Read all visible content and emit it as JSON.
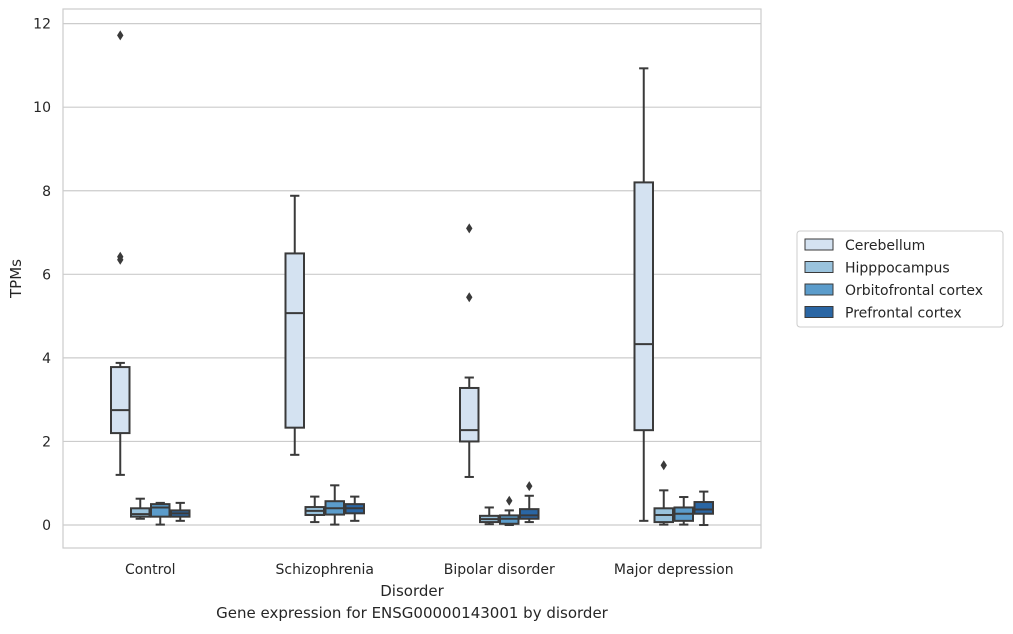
{
  "caption": "Gene expression for ENSG00000143001 by disorder",
  "chart_data": {
    "type": "box",
    "xlabel": "Disorder",
    "ylabel": "TPMs",
    "ylim": [
      -0.55,
      12.35
    ],
    "yticks": [
      0,
      2,
      4,
      6,
      8,
      10,
      12
    ],
    "grid": "horizontal",
    "legend_placement": "right",
    "categories": [
      "Control",
      "Schizophrenia",
      "Bipolar disorder",
      "Major depression"
    ],
    "series": [
      {
        "name": "Cerebellum",
        "color": "#d4e2f1",
        "boxes": [
          {
            "whislo": 1.2,
            "q1": 2.2,
            "med": 2.75,
            "q3": 3.78,
            "whishi": 3.88,
            "fliers": [
              6.35,
              6.42,
              11.72
            ]
          },
          {
            "whislo": 1.68,
            "q1": 2.33,
            "med": 5.07,
            "q3": 6.5,
            "whishi": 7.88,
            "fliers": []
          },
          {
            "whislo": 1.15,
            "q1": 2.0,
            "med": 2.27,
            "q3": 3.28,
            "whishi": 3.53,
            "fliers": [
              5.45,
              7.1
            ]
          },
          {
            "whislo": 0.1,
            "q1": 2.27,
            "med": 4.33,
            "q3": 8.2,
            "whishi": 10.93,
            "fliers": []
          }
        ]
      },
      {
        "name": "Hipppocampus",
        "color": "#9ac3dd",
        "boxes": [
          {
            "whislo": 0.15,
            "q1": 0.2,
            "med": 0.26,
            "q3": 0.4,
            "whishi": 0.63,
            "fliers": []
          },
          {
            "whislo": 0.07,
            "q1": 0.24,
            "med": 0.34,
            "q3": 0.43,
            "whishi": 0.68,
            "fliers": []
          },
          {
            "whislo": 0.02,
            "q1": 0.07,
            "med": 0.14,
            "q3": 0.22,
            "whishi": 0.42,
            "fliers": []
          },
          {
            "whislo": 0.01,
            "q1": 0.07,
            "med": 0.24,
            "q3": 0.4,
            "whishi": 0.83,
            "fliers": [
              1.43
            ]
          }
        ]
      },
      {
        "name": "Orbitofrontal cortex",
        "color": "#5b9ccb",
        "boxes": [
          {
            "whislo": 0.01,
            "q1": 0.2,
            "med": 0.42,
            "q3": 0.5,
            "whishi": 0.53,
            "fliers": []
          },
          {
            "whislo": 0.01,
            "q1": 0.25,
            "med": 0.4,
            "q3": 0.57,
            "whishi": 0.95,
            "fliers": []
          },
          {
            "whislo": 0.0,
            "q1": 0.03,
            "med": 0.15,
            "q3": 0.23,
            "whishi": 0.35,
            "fliers": [
              0.58
            ]
          },
          {
            "whislo": 0.01,
            "q1": 0.1,
            "med": 0.27,
            "q3": 0.42,
            "whishi": 0.67,
            "fliers": []
          }
        ]
      },
      {
        "name": "Prefrontal cortex",
        "color": "#2a66a4",
        "boxes": [
          {
            "whislo": 0.1,
            "q1": 0.2,
            "med": 0.28,
            "q3": 0.35,
            "whishi": 0.53,
            "fliers": []
          },
          {
            "whislo": 0.1,
            "q1": 0.28,
            "med": 0.4,
            "q3": 0.5,
            "whishi": 0.68,
            "fliers": []
          },
          {
            "whislo": 0.07,
            "q1": 0.15,
            "med": 0.23,
            "q3": 0.38,
            "whishi": 0.7,
            "fliers": [
              0.93
            ]
          },
          {
            "whislo": 0.0,
            "q1": 0.27,
            "med": 0.37,
            "q3": 0.55,
            "whishi": 0.8,
            "fliers": []
          }
        ]
      }
    ]
  }
}
